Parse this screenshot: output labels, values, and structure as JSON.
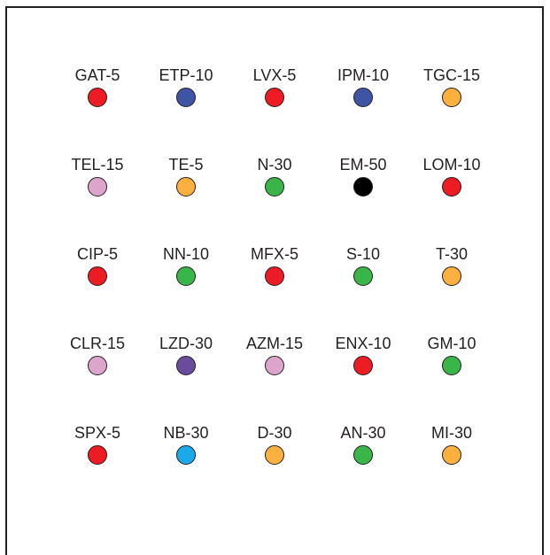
{
  "palette": {
    "red": "#ed1c24",
    "blue": "#3f54a4",
    "orange": "#fbb040",
    "pink": "#dea5cc",
    "green": "#39b54a",
    "black": "#000000",
    "purple": "#6a4c9c",
    "cyan": "#1ba9e9"
  },
  "discs": [
    {
      "label": "GAT-5",
      "color": "#ed1c24"
    },
    {
      "label": "ETP-10",
      "color": "#3f54a4"
    },
    {
      "label": "LVX-5",
      "color": "#ed1c24"
    },
    {
      "label": "IPM-10",
      "color": "#3f54a4"
    },
    {
      "label": "TGC-15",
      "color": "#fbb040"
    },
    {
      "label": "TEL-15",
      "color": "#dea5cc"
    },
    {
      "label": "TE-5",
      "color": "#fbb040"
    },
    {
      "label": "N-30",
      "color": "#39b54a"
    },
    {
      "label": "EM-50",
      "color": "#000000"
    },
    {
      "label": "LOM-10",
      "color": "#ed1c24"
    },
    {
      "label": "CIP-5",
      "color": "#ed1c24"
    },
    {
      "label": "NN-10",
      "color": "#39b54a"
    },
    {
      "label": "MFX-5",
      "color": "#ed1c24"
    },
    {
      "label": "S-10",
      "color": "#39b54a"
    },
    {
      "label": "T-30",
      "color": "#fbb040"
    },
    {
      "label": "CLR-15",
      "color": "#dea5cc"
    },
    {
      "label": "LZD-30",
      "color": "#6a4c9c"
    },
    {
      "label": "AZM-15",
      "color": "#dea5cc"
    },
    {
      "label": "ENX-10",
      "color": "#ed1c24"
    },
    {
      "label": "GM-10",
      "color": "#39b54a"
    },
    {
      "label": "SPX-5",
      "color": "#ed1c24"
    },
    {
      "label": "NB-30",
      "color": "#1ba9e9"
    },
    {
      "label": "D-30",
      "color": "#fbb040"
    },
    {
      "label": "AN-30",
      "color": "#39b54a"
    },
    {
      "label": "MI-30",
      "color": "#fbb040"
    }
  ]
}
